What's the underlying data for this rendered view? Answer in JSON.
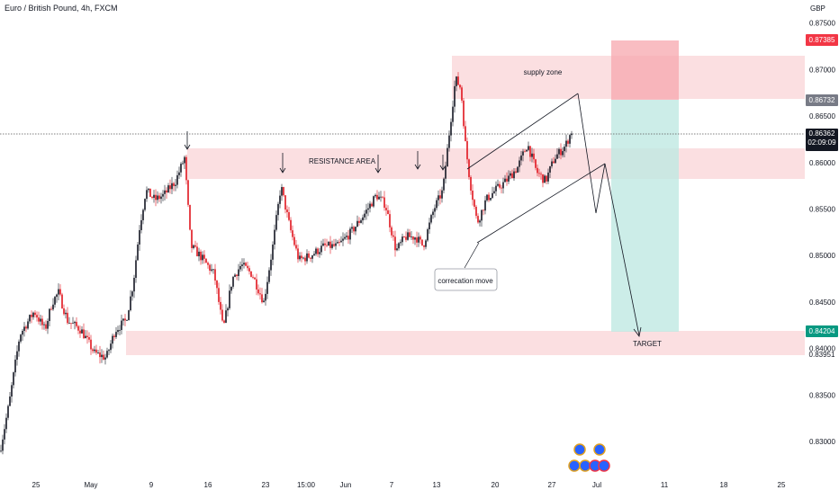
{
  "header": {
    "symbol": "Euro / British Pound, 4h, FXCM",
    "currency": "GBP"
  },
  "colors": {
    "bull": "#131722",
    "bear": "#e0151d",
    "zone": "#f9d1d4",
    "stop": "#f7a7ad",
    "target": "#bfe9e2",
    "badge_red": "#f23645",
    "badge_gray": "#787b86",
    "badge_black": "#131722",
    "badge_green": "#089981"
  },
  "price_badges": {
    "stop": "0.87385",
    "entry": "0.86732",
    "last": "0.86362",
    "countdown": "02:09:09",
    "target": "0.84204",
    "zone_low": "0.83951"
  },
  "annotations": {
    "supply_zone": "supply zone",
    "resistance_area": "RESISTANCE AREA",
    "correction_move": "correcation move",
    "target": "TARGET"
  },
  "chart_data": {
    "type": "candlestick",
    "title": "Euro / British Pound, 4h, FXCM",
    "ylabel": "GBP",
    "ylim": [
      0.8265,
      0.878
    ],
    "grid": false,
    "y_ticks": [
      "0.87500",
      "0.87000",
      "0.86500",
      "0.86000",
      "0.85500",
      "0.85000",
      "0.84500",
      "0.84000",
      "0.83500",
      "0.83000"
    ],
    "x_ticks": [
      "25",
      "May",
      "9",
      "16",
      "23",
      "15:00",
      "Jun",
      "7",
      "13",
      "20",
      "27",
      "Jul",
      "11",
      "18",
      "25"
    ],
    "close_path": [
      [
        0,
        0.829
      ],
      [
        10,
        0.834
      ],
      [
        22,
        0.8415
      ],
      [
        38,
        0.844
      ],
      [
        50,
        0.842
      ],
      [
        58,
        0.845
      ],
      [
        65,
        0.846
      ],
      [
        75,
        0.843
      ],
      [
        90,
        0.842
      ],
      [
        105,
        0.8395
      ],
      [
        118,
        0.839
      ],
      [
        128,
        0.842
      ],
      [
        140,
        0.843
      ],
      [
        148,
        0.847
      ],
      [
        155,
        0.853
      ],
      [
        162,
        0.857
      ],
      [
        172,
        0.856
      ],
      [
        182,
        0.8565
      ],
      [
        195,
        0.858
      ],
      [
        205,
        0.8605
      ],
      [
        212,
        0.851
      ],
      [
        222,
        0.85
      ],
      [
        238,
        0.848
      ],
      [
        248,
        0.842
      ],
      [
        258,
        0.8475
      ],
      [
        268,
        0.849
      ],
      [
        280,
        0.848
      ],
      [
        293,
        0.845
      ],
      [
        303,
        0.851
      ],
      [
        312,
        0.8575
      ],
      [
        322,
        0.853
      ],
      [
        332,
        0.8495
      ],
      [
        345,
        0.85
      ],
      [
        360,
        0.851
      ],
      [
        375,
        0.851
      ],
      [
        390,
        0.8525
      ],
      [
        405,
        0.8545
      ],
      [
        418,
        0.8565
      ],
      [
        428,
        0.8555
      ],
      [
        440,
        0.8505
      ],
      [
        450,
        0.852
      ],
      [
        462,
        0.852
      ],
      [
        470,
        0.851
      ],
      [
        482,
        0.855
      ],
      [
        492,
        0.857
      ],
      [
        500,
        0.864
      ],
      [
        506,
        0.869
      ],
      [
        512,
        0.868
      ],
      [
        517,
        0.862
      ],
      [
        522,
        0.858
      ],
      [
        530,
        0.8535
      ],
      [
        540,
        0.856
      ],
      [
        550,
        0.857
      ],
      [
        562,
        0.858
      ],
      [
        575,
        0.8595
      ],
      [
        586,
        0.862
      ],
      [
        596,
        0.859
      ],
      [
        606,
        0.858
      ],
      [
        616,
        0.8605
      ],
      [
        628,
        0.8618
      ],
      [
        636,
        0.8636
      ]
    ],
    "supply_zone": [
      0.8673,
      0.8722
    ],
    "resistance_area": [
      0.8588,
      0.862
    ],
    "demand_zone": [
      0.8395,
      0.842
    ],
    "trade": {
      "entry": 0.86732,
      "stop": 0.87385,
      "target": 0.84204
    },
    "last_price": 0.86362
  }
}
